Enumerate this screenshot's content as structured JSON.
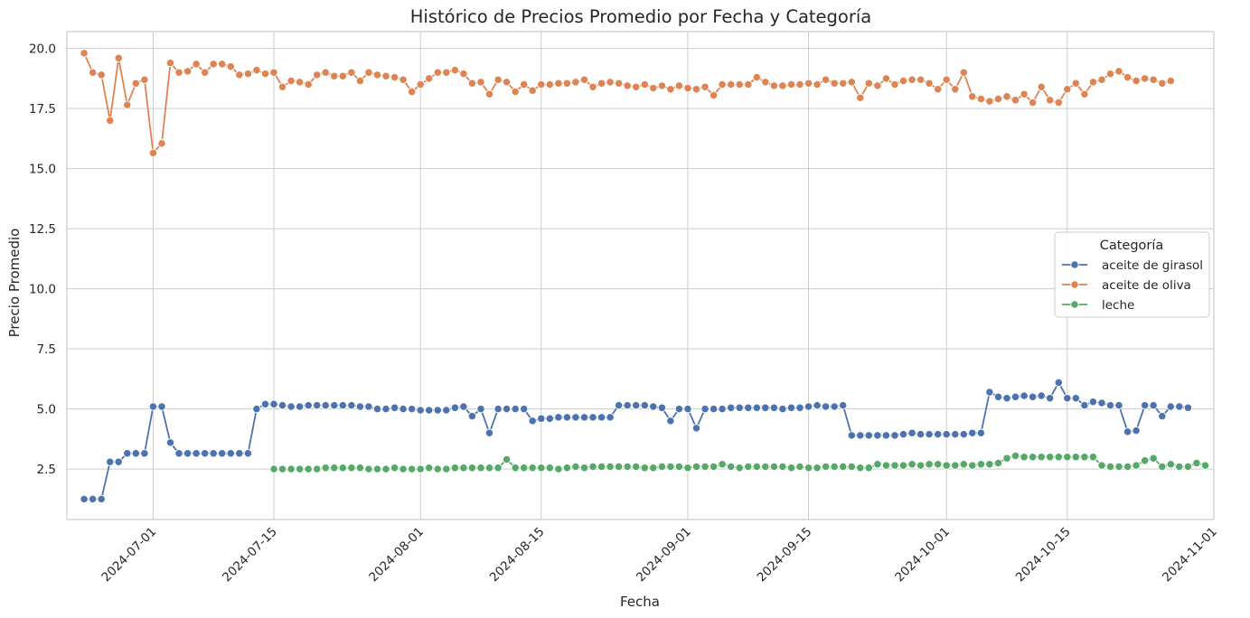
{
  "chart_data": {
    "type": "line",
    "title": "Histórico de Precios Promedio por Fecha y Categoría",
    "xlabel": "Fecha",
    "ylabel": "Precio Promedio",
    "xlim": [
      "2024-06-21",
      "2024-11-01"
    ],
    "ylim": [
      0.4,
      20.7
    ],
    "x_ticks": [
      "2024-07-01",
      "2024-07-15",
      "2024-08-01",
      "2024-08-15",
      "2024-09-01",
      "2024-09-15",
      "2024-10-01",
      "2024-10-15",
      "2024-11-01"
    ],
    "y_ticks": [
      2.5,
      5.0,
      7.5,
      10.0,
      12.5,
      15.0,
      17.5,
      20.0
    ],
    "y_tick_labels": [
      "2.5",
      "5.0",
      "7.5",
      "10.0",
      "12.5",
      "15.0",
      "17.5",
      "20.0"
    ],
    "x_tick_rotation": 45,
    "grid": true,
    "legend": {
      "title": "Categoría",
      "position": "right"
    },
    "series": [
      {
        "name": "aceite de girasol",
        "color": "#4c72b0",
        "start": "2024-06-23",
        "values": [
          1.25,
          1.25,
          1.25,
          2.8,
          2.8,
          3.15,
          3.15,
          3.15,
          5.1,
          5.1,
          3.6,
          3.15,
          3.15,
          3.15,
          3.15,
          3.15,
          3.15,
          3.15,
          3.15,
          3.15,
          5.0,
          5.2,
          5.2,
          5.15,
          5.1,
          5.1,
          5.15,
          5.15,
          5.15,
          5.15,
          5.15,
          5.15,
          5.1,
          5.1,
          5.0,
          5.0,
          5.05,
          5.0,
          5.0,
          4.95,
          4.95,
          4.95,
          4.95,
          5.05,
          5.1,
          4.7,
          5.0,
          4.0,
          5.0,
          5.0,
          5.0,
          5.0,
          4.5,
          4.6,
          4.6,
          4.65,
          4.65,
          4.65,
          4.65,
          4.65,
          4.65,
          4.65,
          5.15,
          5.15,
          5.15,
          5.15,
          5.1,
          5.05,
          4.5,
          5.0,
          5.0,
          4.2,
          5.0,
          5.0,
          5.0,
          5.05,
          5.05,
          5.05,
          5.05,
          5.05,
          5.05,
          5.0,
          5.05,
          5.05,
          5.1,
          5.15,
          5.1,
          5.1,
          5.15,
          3.9,
          3.9,
          3.9,
          3.9,
          3.9,
          3.9,
          3.95,
          4.0,
          3.95,
          3.95,
          3.95,
          3.95,
          3.95,
          3.95,
          4.0,
          4.0,
          5.7,
          5.5,
          5.45,
          5.5,
          5.55,
          5.5,
          5.55,
          5.45,
          6.1,
          5.45,
          5.45,
          5.15,
          5.3,
          5.25,
          5.15,
          5.15,
          4.05,
          4.1,
          5.15,
          5.15,
          4.7,
          5.1,
          5.1,
          5.05
        ]
      },
      {
        "name": "aceite de oliva",
        "color": "#dd8452",
        "start": "2024-06-23",
        "values": [
          19.8,
          19.0,
          18.9,
          17.0,
          19.6,
          17.65,
          18.55,
          18.7,
          15.65,
          16.05,
          19.4,
          19.0,
          19.05,
          19.35,
          19.0,
          19.35,
          19.35,
          19.25,
          18.9,
          18.95,
          19.1,
          18.95,
          19.0,
          18.4,
          18.65,
          18.6,
          18.5,
          18.9,
          19.0,
          18.85,
          18.85,
          19.0,
          18.65,
          19.0,
          18.9,
          18.85,
          18.8,
          18.7,
          18.2,
          18.5,
          18.75,
          19.0,
          19.0,
          19.1,
          18.95,
          18.55,
          18.6,
          18.1,
          18.7,
          18.6,
          18.2,
          18.5,
          18.25,
          18.5,
          18.5,
          18.55,
          18.55,
          18.6,
          18.7,
          18.4,
          18.55,
          18.6,
          18.55,
          18.45,
          18.4,
          18.5,
          18.35,
          18.45,
          18.3,
          18.45,
          18.35,
          18.3,
          18.4,
          18.05,
          18.5,
          18.5,
          18.5,
          18.5,
          18.8,
          18.6,
          18.45,
          18.45,
          18.5,
          18.5,
          18.55,
          18.5,
          18.7,
          18.55,
          18.55,
          18.6,
          17.95,
          18.55,
          18.45,
          18.75,
          18.5,
          18.65,
          18.7,
          18.7,
          18.55,
          18.3,
          18.7,
          18.3,
          19.0,
          18.0,
          17.9,
          17.8,
          17.9,
          18.0,
          17.85,
          18.1,
          17.75,
          18.4,
          17.85,
          17.75,
          18.3,
          18.55,
          18.1,
          18.6,
          18.7,
          18.95,
          19.05,
          18.8,
          18.65,
          18.75,
          18.7,
          18.55,
          18.65
        ]
      },
      {
        "name": "leche",
        "color": "#55a868",
        "start": "2024-07-15",
        "values": [
          2.5,
          2.5,
          2.5,
          2.5,
          2.5,
          2.5,
          2.55,
          2.55,
          2.55,
          2.55,
          2.55,
          2.5,
          2.5,
          2.5,
          2.55,
          2.5,
          2.5,
          2.5,
          2.55,
          2.5,
          2.5,
          2.55,
          2.55,
          2.55,
          2.55,
          2.55,
          2.55,
          2.9,
          2.55,
          2.55,
          2.55,
          2.55,
          2.55,
          2.5,
          2.55,
          2.6,
          2.55,
          2.6,
          2.6,
          2.6,
          2.6,
          2.6,
          2.6,
          2.55,
          2.55,
          2.6,
          2.6,
          2.6,
          2.55,
          2.6,
          2.6,
          2.6,
          2.7,
          2.6,
          2.55,
          2.6,
          2.6,
          2.6,
          2.6,
          2.6,
          2.55,
          2.6,
          2.55,
          2.55,
          2.6,
          2.6,
          2.6,
          2.6,
          2.55,
          2.55,
          2.7,
          2.65,
          2.65,
          2.65,
          2.7,
          2.65,
          2.7,
          2.7,
          2.65,
          2.65,
          2.7,
          2.65,
          2.7,
          2.7,
          2.75,
          2.95,
          3.05,
          3.0,
          3.0,
          3.0,
          3.0,
          3.0,
          3.0,
          3.0,
          3.0,
          3.0,
          2.65,
          2.6,
          2.6,
          2.6,
          2.65,
          2.85,
          2.95,
          2.6,
          2.7,
          2.6,
          2.6,
          2.75,
          2.65
        ]
      }
    ]
  }
}
